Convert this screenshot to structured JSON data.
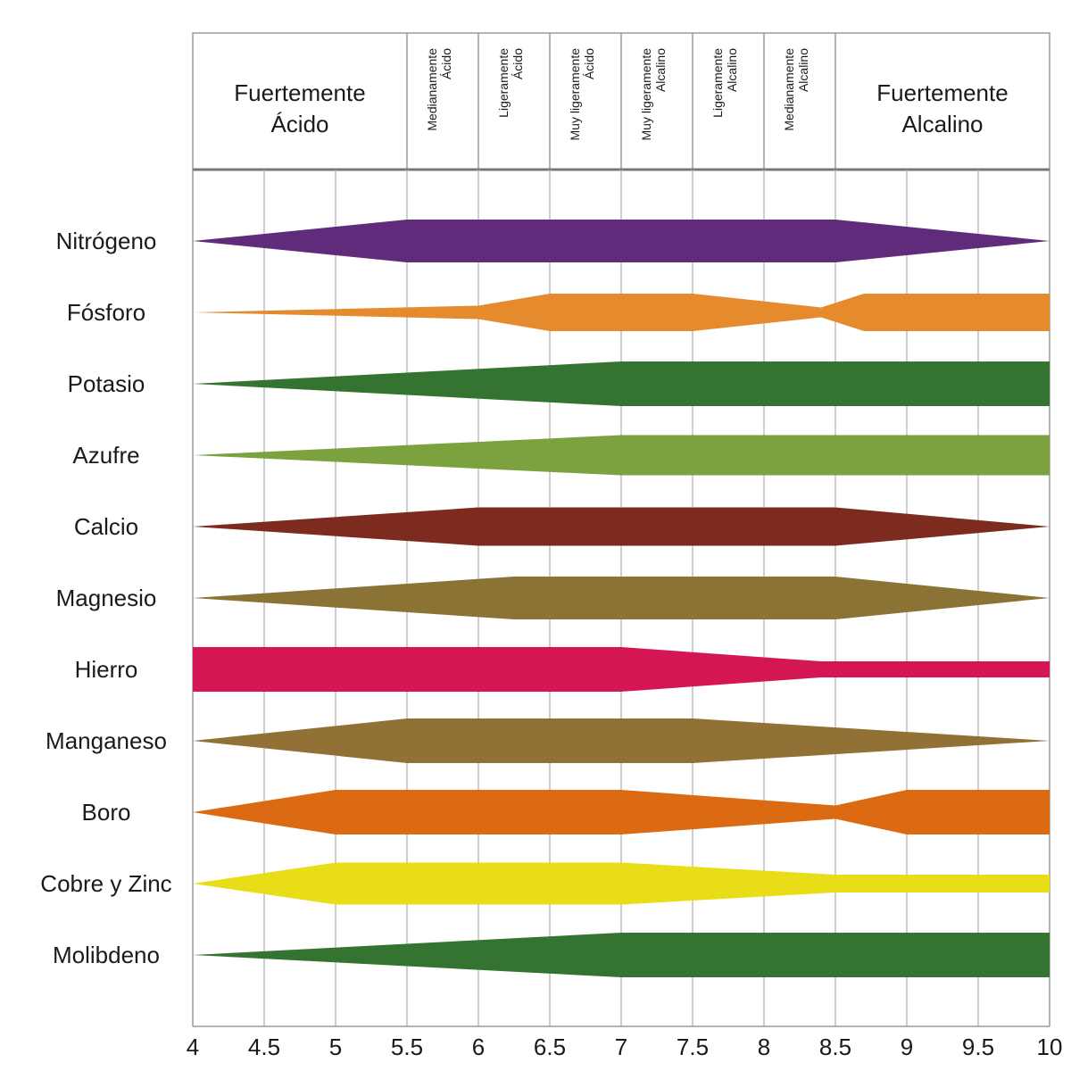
{
  "chart_data": {
    "type": "area",
    "xlim": [
      4,
      10
    ],
    "x_ticks": [
      "4",
      "4.5",
      "5",
      "5.5",
      "6",
      "6.5",
      "7",
      "7.5",
      "8",
      "8.5",
      "9",
      "9.5",
      "10"
    ],
    "grid": true,
    "zones": [
      {
        "from": 4,
        "to": 5.5,
        "lines": [
          "Fuertemente",
          "Ácido"
        ],
        "size": "big"
      },
      {
        "from": 5.5,
        "to": 6,
        "lines": [
          "Medianamente",
          "Ácido"
        ],
        "size": "small"
      },
      {
        "from": 6,
        "to": 6.5,
        "lines": [
          "Ligeramente",
          "Ácido"
        ],
        "size": "small"
      },
      {
        "from": 6.5,
        "to": 7,
        "lines": [
          "Muy ligeramente",
          "Ácido"
        ],
        "size": "small"
      },
      {
        "from": 7,
        "to": 7.5,
        "lines": [
          "Muy ligeramente",
          "Alcalino"
        ],
        "size": "small"
      },
      {
        "from": 7.5,
        "to": 8,
        "lines": [
          "Ligeramente",
          "Alcalino"
        ],
        "size": "small"
      },
      {
        "from": 8,
        "to": 8.5,
        "lines": [
          "Medianamente",
          "Alcalino"
        ],
        "size": "small"
      },
      {
        "from": 8.5,
        "to": 10,
        "lines": [
          "Fuertemente",
          "Alcalino"
        ],
        "size": "big"
      }
    ],
    "max_relative_availability": 1.0,
    "series": [
      {
        "name": "Nitrógeno",
        "color": "#5f2b7a",
        "points": [
          [
            4,
            0
          ],
          [
            5.5,
            0.96
          ],
          [
            8.5,
            0.96
          ],
          [
            10,
            0
          ]
        ]
      },
      {
        "name": "Fósforo",
        "color": "#e68a2e",
        "points": [
          [
            4,
            0
          ],
          [
            6,
            0.3
          ],
          [
            6.5,
            0.84
          ],
          [
            7.5,
            0.84
          ],
          [
            8.4,
            0.22
          ],
          [
            8.7,
            0.84
          ],
          [
            10,
            0.84
          ]
        ]
      },
      {
        "name": "Potasio",
        "color": "#357430",
        "points": [
          [
            4,
            0
          ],
          [
            7,
            1.0
          ],
          [
            10,
            1.0
          ]
        ]
      },
      {
        "name": "Azufre",
        "color": "#7ba23f",
        "points": [
          [
            4,
            0
          ],
          [
            7,
            0.9
          ],
          [
            10,
            0.9
          ]
        ]
      },
      {
        "name": "Calcio",
        "color": "#7e2b1f",
        "points": [
          [
            4,
            0
          ],
          [
            6,
            0.86
          ],
          [
            8.5,
            0.86
          ],
          [
            10,
            0
          ]
        ]
      },
      {
        "name": "Magnesio",
        "color": "#8a7334",
        "points": [
          [
            4,
            0
          ],
          [
            6.25,
            0.96
          ],
          [
            8.5,
            0.96
          ],
          [
            10,
            0
          ]
        ]
      },
      {
        "name": "Hierro",
        "color": "#d41752",
        "points": [
          [
            4,
            1.0
          ],
          [
            7,
            1.0
          ],
          [
            8.4,
            0.36
          ],
          [
            10,
            0.36
          ]
        ]
      },
      {
        "name": "Manganeso",
        "color": "#927137",
        "points": [
          [
            4,
            0
          ],
          [
            5.5,
            1.0
          ],
          [
            7.5,
            1.0
          ],
          [
            10,
            0
          ]
        ]
      },
      {
        "name": "Boro",
        "color": "#dc6a12",
        "points": [
          [
            4,
            0
          ],
          [
            5,
            1.0
          ],
          [
            7,
            1.0
          ],
          [
            8.5,
            0.3
          ],
          [
            9,
            1.0
          ],
          [
            10,
            1.0
          ]
        ]
      },
      {
        "name": "Cobre y Zinc",
        "color": "#e8dd16",
        "points": [
          [
            4,
            0
          ],
          [
            5,
            0.94
          ],
          [
            7,
            0.94
          ],
          [
            8.5,
            0.4
          ],
          [
            10,
            0.4
          ]
        ]
      },
      {
        "name": "Molibdeno",
        "color": "#357430",
        "points": [
          [
            4,
            0
          ],
          [
            7,
            1.0
          ],
          [
            10,
            1.0
          ]
        ]
      }
    ]
  }
}
